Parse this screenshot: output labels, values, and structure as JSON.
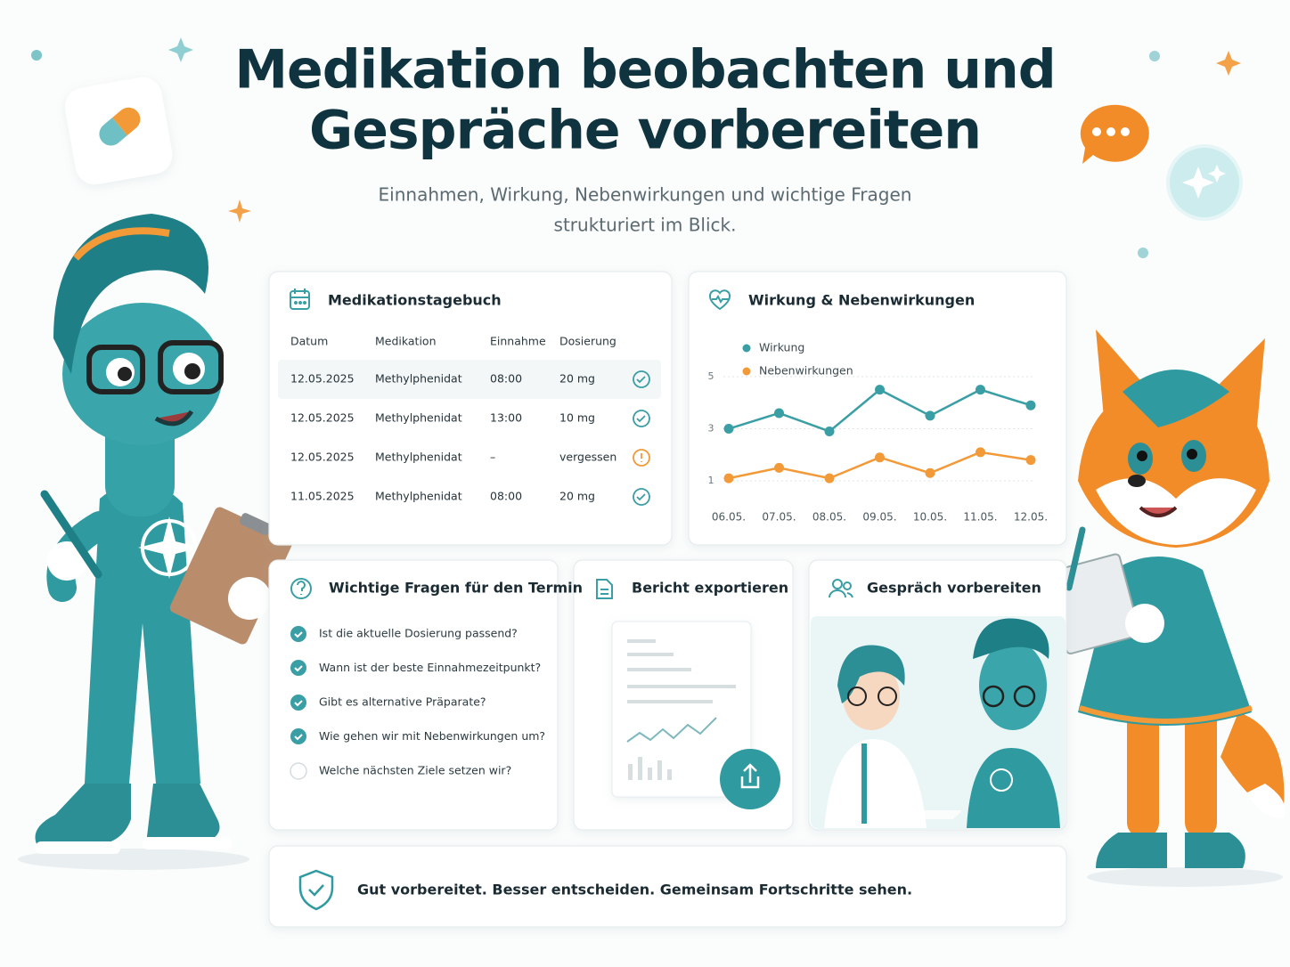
{
  "header": {
    "title": [
      "Medikation beobachten und",
      "Gespräche vorbereiten"
    ],
    "subtitle": [
      "Einnahmen, Wirkung, Nebenwirkungen und wichtige Fragen",
      "strukturiert im Blick."
    ]
  },
  "diary": {
    "title": "Medikationstagebuch",
    "columns": [
      "Datum",
      "Medikation",
      "Einnahme",
      "Dosierung"
    ],
    "rows": [
      [
        "12.05.2025",
        "Methylphenidat",
        "08:00",
        "20 mg"
      ],
      [
        "12.05.2025",
        "Methylphenidat",
        "13:00",
        "10 mg"
      ],
      [
        "12.05.2025",
        "Methylphenidat",
        "–",
        "vergessen"
      ],
      [
        "11.05.2025",
        "Methylphenidat",
        "08:00",
        "20 mg"
      ]
    ]
  },
  "chart_data": {
    "type": "line",
    "title": "Wirkung & Nebenwirkungen",
    "categories": [
      "06.05.",
      "07.05.",
      "08.05.",
      "09.05.",
      "10.05.",
      "11.05.",
      "12.05."
    ],
    "series": [
      {
        "name": "Wirkung",
        "color": "#3a9ea5",
        "values": [
          3.0,
          3.6,
          2.9,
          4.5,
          3.5,
          4.5,
          3.9
        ]
      },
      {
        "name": "Nebenwirkungen",
        "color": "#f29a38",
        "values": [
          1.1,
          1.5,
          1.1,
          1.9,
          1.3,
          2.1,
          1.8
        ]
      }
    ],
    "ylim": [
      0.8,
      5.8
    ],
    "yticks": [
      1,
      3,
      5
    ],
    "grid": true
  },
  "questions": {
    "title": "Wichtige Fragen für den Termin",
    "items": [
      "Ist die aktuelle Dosierung passend?",
      "Wann ist der beste Einnahmezeitpunkt?",
      "Gibt es alternative Präparate?",
      "Wie gehen wir mit Nebenwirkungen um?",
      "Welche nächsten Ziele setzen wir?"
    ]
  },
  "report": {
    "title": "Bericht exportieren"
  },
  "conversation": {
    "title": "Gespräch vorbereiten"
  },
  "footer": "Gut vorbereitet. Besser entscheiden. Gemeinsam Fortschritte sehen."
}
